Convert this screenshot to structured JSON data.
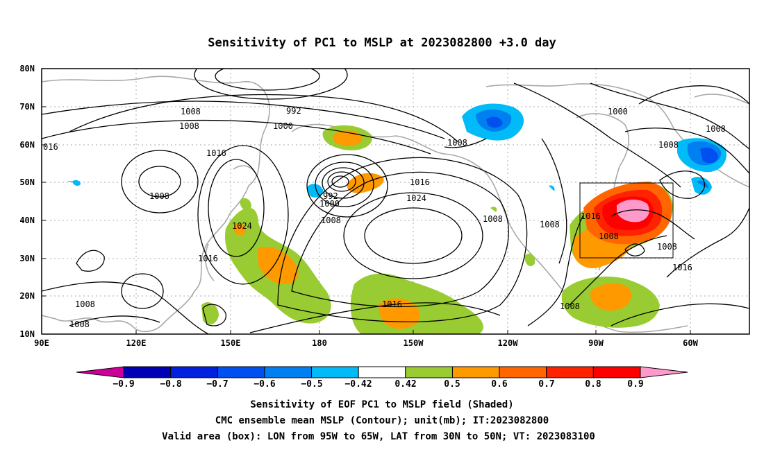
{
  "title": "Sensitivity of PC1 to MSLP at 2023082800 +3.0 day",
  "lat_ticks": [
    "80N",
    "70N",
    "60N",
    "50N",
    "40N",
    "30N",
    "20N",
    "10N"
  ],
  "lon_ticks": [
    "90E",
    "120E",
    "150E",
    "180",
    "150W",
    "120W",
    "90W",
    "60W"
  ],
  "contour_labels": [
    "1008",
    "992",
    "1000",
    "1008",
    "1000",
    "016",
    "1016",
    "1008",
    "1008",
    "992",
    "1000",
    "1008",
    "1016",
    "1024",
    "1024",
    "1008",
    "1008",
    "1016",
    "1008",
    "1016",
    "1008",
    "1016",
    "1008",
    "1008",
    "1008",
    "1016",
    "1008",
    "1008"
  ],
  "colorbar": {
    "labels": [
      "−0.9",
      "−0.8",
      "−0.7",
      "−0.6",
      "−0.5",
      "−0.42",
      "0.42",
      "0.5",
      "0.6",
      "0.7",
      "0.8",
      "0.9"
    ],
    "colors": [
      "#cc0099",
      "#0000b4",
      "#0020e0",
      "#0050f0",
      "#0080f0",
      "#00bbf8",
      "#ffffff",
      "#99cc33",
      "#ff9900",
      "#ff6600",
      "#ff2200",
      "#ff0000",
      "#ff99cc"
    ]
  },
  "footer": [
    "Sensitivity of EOF PC1 to MSLP field (Shaded)",
    "CMC ensemble mean MSLP (Contour); unit(mb); IT:2023082800",
    "Valid area (box): LON from 95W to 65W, LAT from 30N to 50N; VT: 2023083100"
  ]
}
